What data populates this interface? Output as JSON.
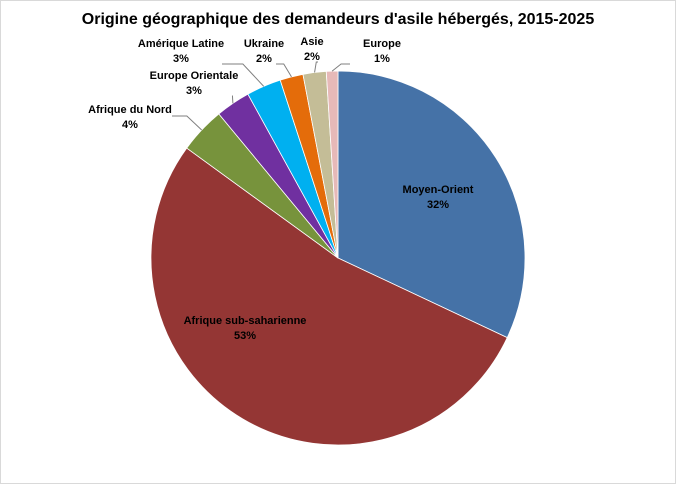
{
  "chart_data": {
    "type": "pie",
    "title": "Origine géographique des demandeurs d'asile hébergés, 2015-2025",
    "categories": [
      "Moyen-Orient",
      "Afrique sub-saharienne",
      "Afrique du Nord",
      "Europe Orientale",
      "Amérique Latine",
      "Ukraine",
      "Asie",
      "Europe"
    ],
    "values": [
      32,
      53,
      4,
      3,
      3,
      2,
      2,
      1
    ],
    "value_labels": [
      "32%",
      "53%",
      "4%",
      "3%",
      "3%",
      "2%",
      "2%",
      "1%"
    ],
    "colors": [
      "#4572a7",
      "#943634",
      "#77933c",
      "#7030a0",
      "#00b0f0",
      "#e46c0a",
      "#c4bd97",
      "#e6b9b8"
    ]
  }
}
